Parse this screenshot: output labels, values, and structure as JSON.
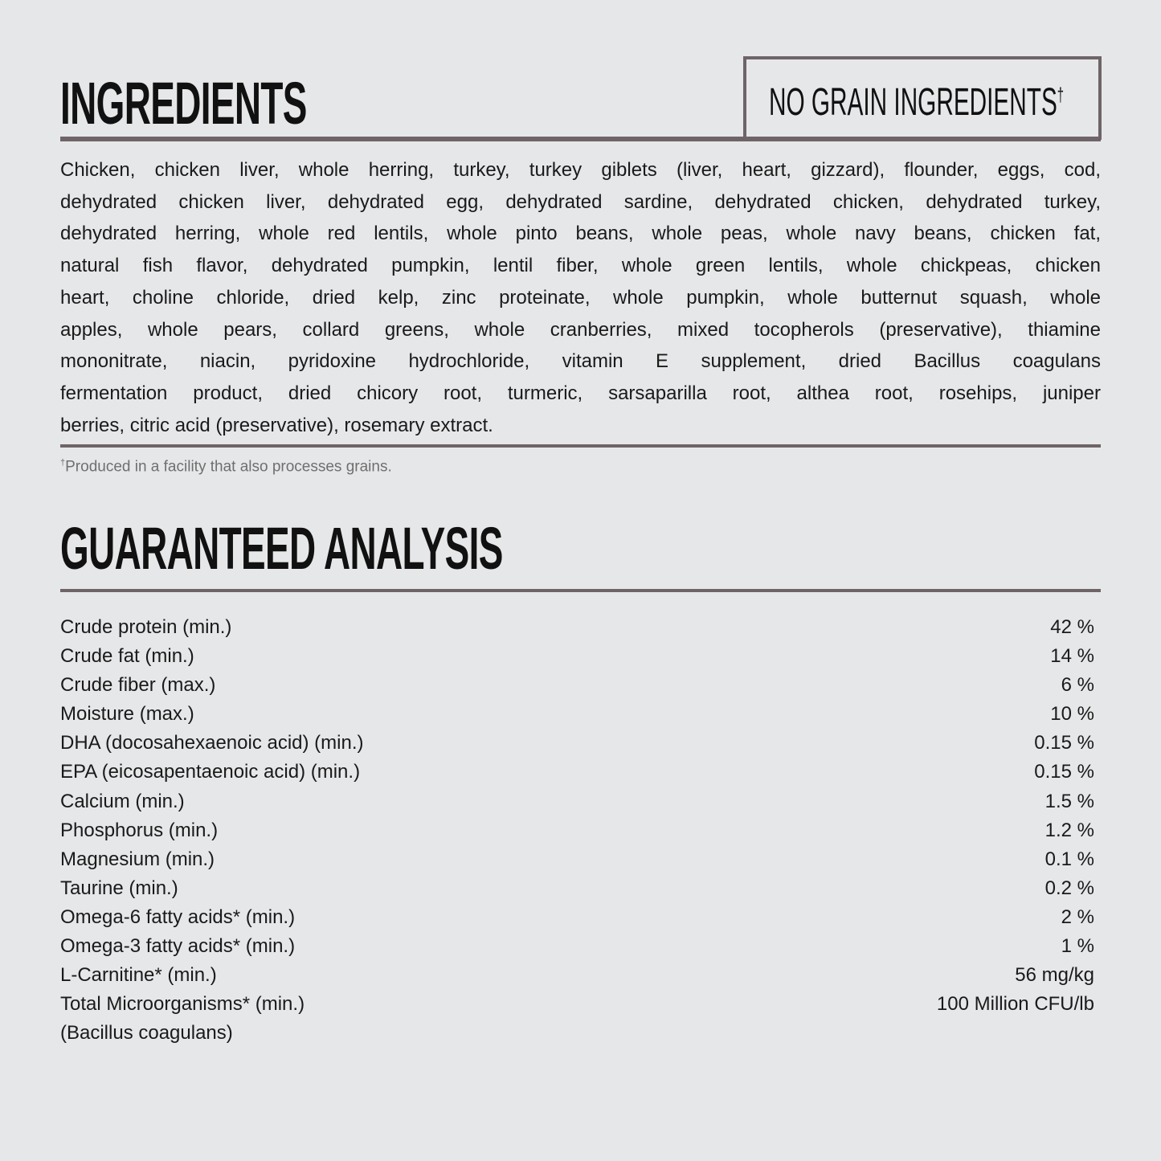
{
  "ingredients": {
    "title": "INGREDIENTS",
    "badge": "NO GRAIN INGREDIENTS",
    "badge_mark": "†",
    "lines": [
      "Chicken, chicken liver, whole herring, turkey, turkey giblets (liver, heart, gizzard), flounder, eggs, cod,",
      "dehydrated chicken liver, dehydrated egg, dehydrated sardine, dehydrated chicken, dehydrated turkey,",
      "dehydrated herring, whole red lentils, whole pinto beans, whole peas, whole navy beans, chicken fat,",
      "natural fish flavor, dehydrated pumpkin, lentil fiber, whole green lentils, whole chickpeas, chicken",
      "heart, choline chloride, dried kelp, zinc proteinate, whole pumpkin, whole butternut squash, whole",
      "apples, whole pears, collard greens, whole cranberries, mixed tocopherols (preservative), thiamine",
      "mononitrate, niacin, pyridoxine hydrochloride, vitamin E supplement, dried Bacillus coagulans",
      "fermentation product, dried chicory root, turmeric, sarsaparilla root, althea root, rosehips, juniper",
      "berries, citric acid (preservative), rosemary extract."
    ],
    "footnote_mark": "†",
    "footnote": "Produced in a facility that also processes grains."
  },
  "analysis": {
    "title": "GUARANTEED ANALYSIS",
    "rows": [
      {
        "label": "Crude protein (min.)",
        "value": "42 %"
      },
      {
        "label": "Crude fat (min.)",
        "value": "14 %"
      },
      {
        "label": "Crude fiber (max.)",
        "value": "6 %"
      },
      {
        "label": "Moisture (max.)",
        "value": "10 %"
      },
      {
        "label": "DHA (docosahexaenoic acid) (min.)",
        "value": "0.15 %"
      },
      {
        "label": "EPA (eicosapentaenoic acid) (min.)",
        "value": "0.15 %"
      },
      {
        "label": "Calcium (min.)",
        "value": "1.5 %"
      },
      {
        "label": "Phosphorus (min.)",
        "value": "1.2 %"
      },
      {
        "label": "Magnesium (min.)",
        "value": "0.1 %"
      },
      {
        "label": "Taurine (min.)",
        "value": "0.2 %"
      },
      {
        "label": "Omega-6 fatty acids* (min.)",
        "value": "2 %"
      },
      {
        "label": "Omega-3 fatty acids* (min.)",
        "value": "1 %"
      },
      {
        "label": "L-Carnitine* (min.)",
        "value": "56 mg/kg"
      },
      {
        "label": "Total Microorganisms* (min.)",
        "value": "100 Million CFU/lb"
      },
      {
        "label": "(Bacillus coagulans)",
        "value": ""
      }
    ]
  },
  "colors": {
    "background": "#e6e7e9",
    "rule": "#6e6467"
  }
}
